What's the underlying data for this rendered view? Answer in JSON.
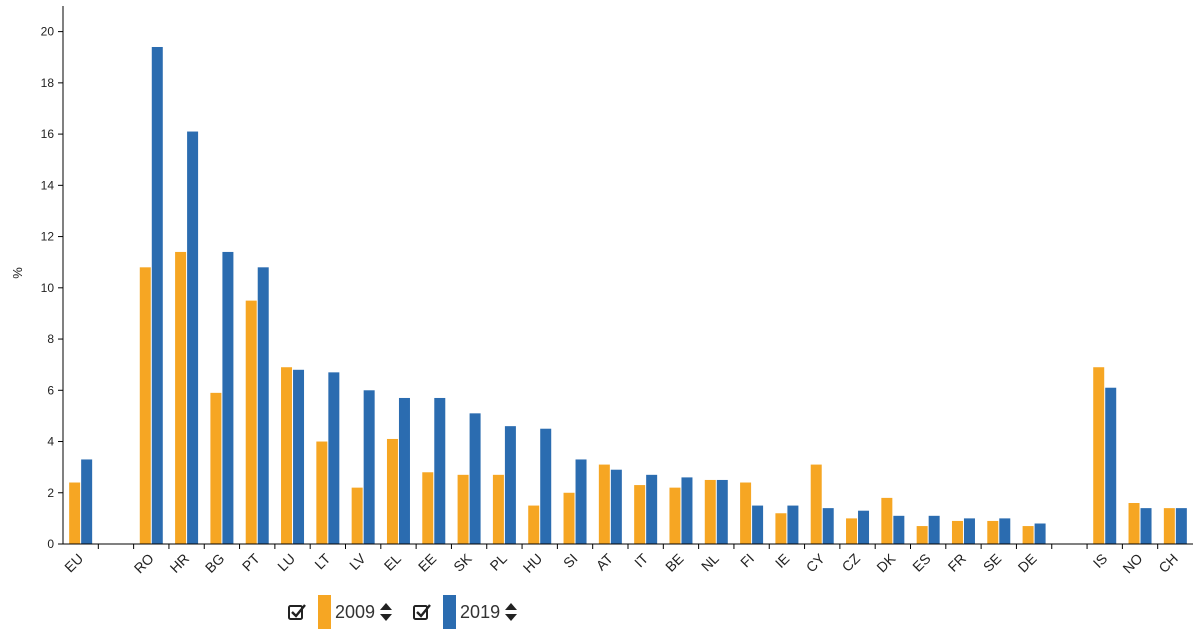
{
  "chart_data": {
    "type": "bar",
    "ylabel": "%",
    "ylim": [
      0,
      21
    ],
    "yticks": [
      0,
      2,
      4,
      6,
      8,
      10,
      12,
      14,
      16,
      18,
      20
    ],
    "categories": [
      "EU",
      "",
      "RO",
      "HR",
      "BG",
      "PT",
      "LU",
      "LT",
      "LV",
      "EL",
      "EE",
      "SK",
      "PL",
      "HU",
      "SI",
      "AT",
      "IT",
      "BE",
      "NL",
      "FI",
      "IE",
      "CY",
      "CZ",
      "DK",
      "ES",
      "FR",
      "SE",
      "DE",
      "",
      "IS",
      "NO",
      "CH"
    ],
    "series": [
      {
        "name": "2009",
        "color": "#f6a623",
        "values": [
          2.4,
          null,
          10.8,
          11.4,
          5.9,
          9.5,
          6.9,
          4.0,
          2.2,
          4.1,
          2.8,
          2.7,
          2.7,
          1.5,
          2.0,
          3.1,
          2.3,
          2.2,
          2.5,
          2.4,
          1.2,
          3.1,
          1.0,
          1.8,
          0.7,
          0.9,
          0.9,
          0.7,
          null,
          6.9,
          1.6,
          1.4
        ]
      },
      {
        "name": "2019",
        "color": "#2b6cb0",
        "values": [
          3.3,
          null,
          19.4,
          16.1,
          11.4,
          10.8,
          6.8,
          6.7,
          6.0,
          5.7,
          5.7,
          5.1,
          4.6,
          4.5,
          3.3,
          2.9,
          2.7,
          2.6,
          2.5,
          1.5,
          1.5,
          1.4,
          1.3,
          1.1,
          1.1,
          1.0,
          1.0,
          0.8,
          null,
          6.1,
          1.4,
          1.4
        ]
      }
    ],
    "grid": false,
    "legend_position": "bottom-left"
  },
  "legend": {
    "items": [
      {
        "label": "2009",
        "checked": true
      },
      {
        "label": "2019",
        "checked": true
      }
    ]
  },
  "icons": {
    "checkbox": "checkbox-checked-icon",
    "sort": "sort-updown-icon"
  }
}
